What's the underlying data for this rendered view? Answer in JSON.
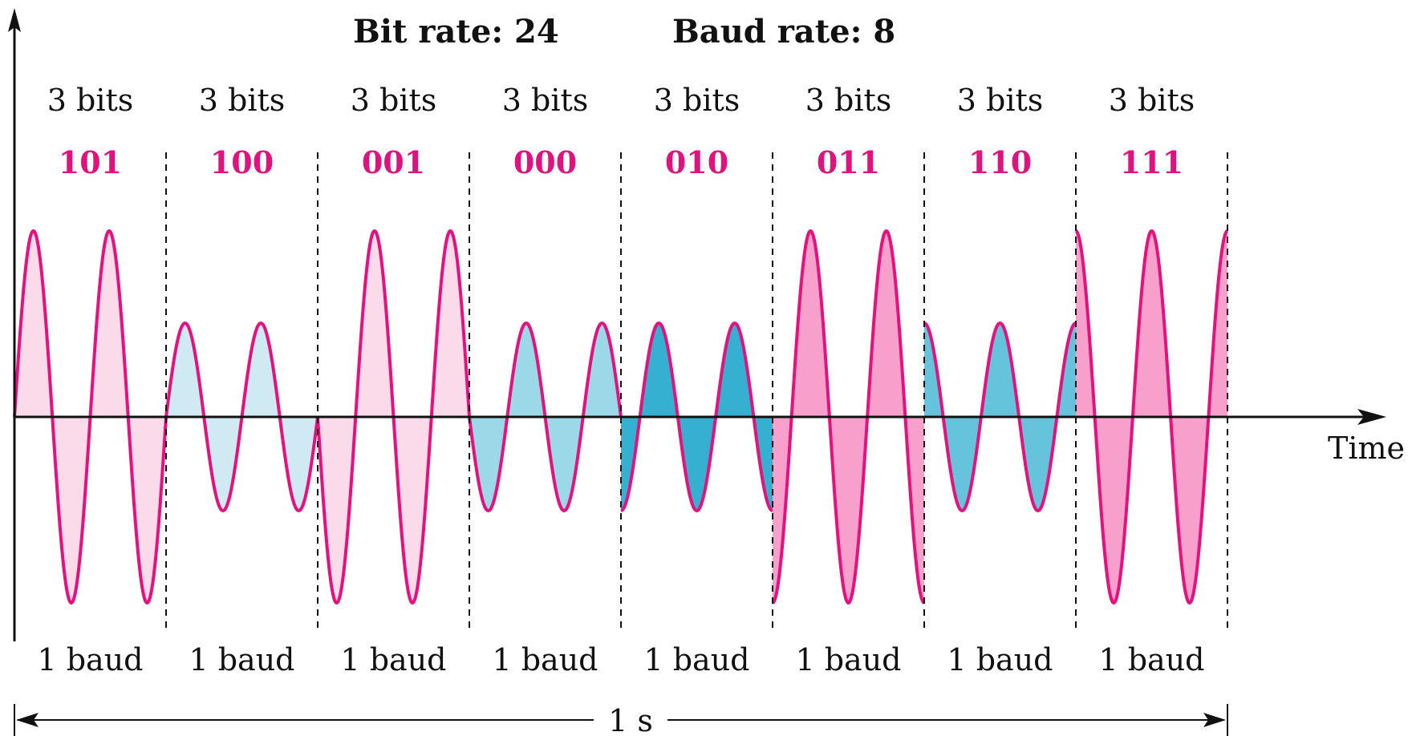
{
  "header": {
    "bit_rate": "Bit rate: 24",
    "baud_rate": "Baud rate: 8"
  },
  "axis": {
    "x_label": "Time",
    "duration_label": "1 s"
  },
  "colors": {
    "signal_stroke": "#e5117e",
    "code_text": "#e0127e",
    "axis": "#111111"
  },
  "bauds": [
    {
      "bits_label": "3 bits",
      "code": "101",
      "baud_label": "1 baud",
      "amplitude": "high",
      "phase_deg": 180,
      "fill": "#fbdbea"
    },
    {
      "bits_label": "3 bits",
      "code": "100",
      "baud_label": "1 baud",
      "amplitude": "low",
      "phase_deg": 180,
      "fill": "#cfeaf3"
    },
    {
      "bits_label": "3 bits",
      "code": "001",
      "baud_label": "1 baud",
      "amplitude": "high",
      "phase_deg": 0,
      "fill": "#fbdbea"
    },
    {
      "bits_label": "3 bits",
      "code": "000",
      "baud_label": "1 baud",
      "amplitude": "low",
      "phase_deg": 0,
      "fill": "#9bd8e8"
    },
    {
      "bits_label": "3 bits",
      "code": "010",
      "baud_label": "1 baud",
      "amplitude": "low",
      "phase_deg": 90,
      "fill": "#36b0d0"
    },
    {
      "bits_label": "3 bits",
      "code": "011",
      "baud_label": "1 baud",
      "amplitude": "high",
      "phase_deg": 90,
      "fill": "#f7a0cb"
    },
    {
      "bits_label": "3 bits",
      "code": "110",
      "baud_label": "1 baud",
      "amplitude": "low",
      "phase_deg": 270,
      "fill": "#66c3dc"
    },
    {
      "bits_label": "3 bits",
      "code": "111",
      "baud_label": "1 baud",
      "amplitude": "high",
      "phase_deg": 270,
      "fill": "#f7a0cb"
    }
  ]
}
